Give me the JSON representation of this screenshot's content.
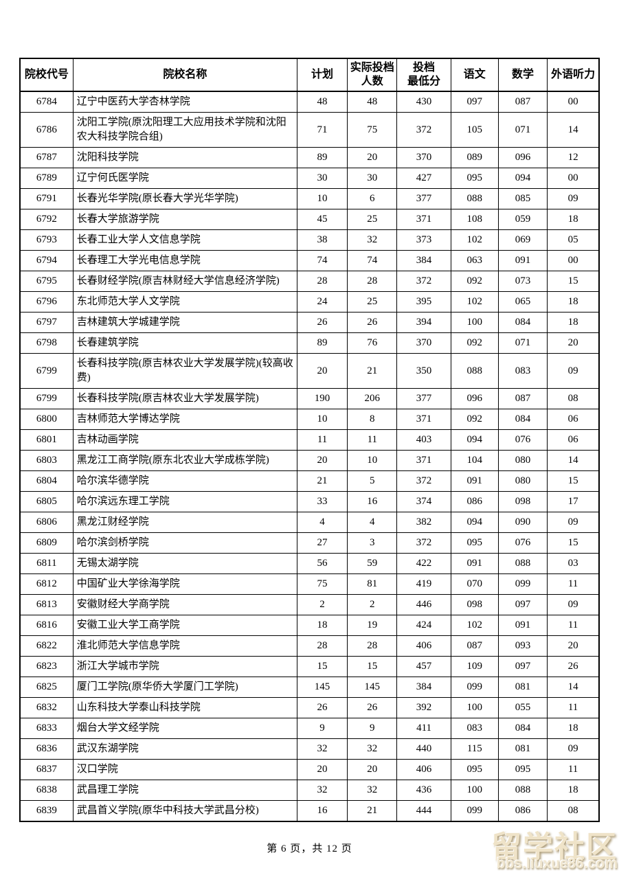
{
  "page": {
    "footer": "第 6 页，共 12 页"
  },
  "watermark": {
    "title": "留学社区",
    "url": "bbs.liuxue86.com"
  },
  "table": {
    "columns": [
      {
        "key": "college-code",
        "label": "院校代号"
      },
      {
        "key": "college-name",
        "label": "院校名称"
      },
      {
        "key": "plan",
        "label": "计划"
      },
      {
        "key": "actual-count",
        "label": "实际投档\n人数"
      },
      {
        "key": "min-score",
        "label": "投档\n最低分"
      },
      {
        "key": "chinese",
        "label": "语文"
      },
      {
        "key": "math",
        "label": "数学"
      },
      {
        "key": "foreign-listening",
        "label": "外语听力"
      }
    ],
    "rows": [
      [
        "6784",
        "辽宁中医药大学杏林学院",
        "48",
        "48",
        "430",
        "097",
        "087",
        "00"
      ],
      [
        "6786",
        "沈阳工学院(原沈阳理工大应用技术学院和沈阳农大科技学院合组)",
        "71",
        "75",
        "372",
        "105",
        "071",
        "14"
      ],
      [
        "6787",
        "沈阳科技学院",
        "89",
        "20",
        "370",
        "089",
        "096",
        "12"
      ],
      [
        "6789",
        "辽宁何氏医学院",
        "30",
        "30",
        "427",
        "095",
        "094",
        "00"
      ],
      [
        "6791",
        "长春光华学院(原长春大学光华学院)",
        "10",
        "6",
        "377",
        "088",
        "085",
        "09"
      ],
      [
        "6792",
        "长春大学旅游学院",
        "45",
        "25",
        "371",
        "108",
        "059",
        "18"
      ],
      [
        "6793",
        "长春工业大学人文信息学院",
        "38",
        "32",
        "373",
        "102",
        "069",
        "05"
      ],
      [
        "6794",
        "长春理工大学光电信息学院",
        "74",
        "74",
        "384",
        "063",
        "091",
        "00"
      ],
      [
        "6795",
        "长春财经学院(原吉林财经大学信息经济学院)",
        "28",
        "28",
        "372",
        "092",
        "073",
        "15"
      ],
      [
        "6796",
        "东北师范大学人文学院",
        "24",
        "25",
        "395",
        "102",
        "065",
        "18"
      ],
      [
        "6797",
        "吉林建筑大学城建学院",
        "26",
        "26",
        "394",
        "100",
        "084",
        "18"
      ],
      [
        "6798",
        "长春建筑学院",
        "89",
        "76",
        "370",
        "092",
        "071",
        "20"
      ],
      [
        "6799",
        "长春科技学院(原吉林农业大学发展学院)(较高收费)",
        "20",
        "21",
        "350",
        "088",
        "083",
        "09"
      ],
      [
        "6799",
        "长春科技学院(原吉林农业大学发展学院)",
        "190",
        "206",
        "377",
        "096",
        "087",
        "08"
      ],
      [
        "6800",
        "吉林师范大学博达学院",
        "10",
        "8",
        "371",
        "092",
        "084",
        "06"
      ],
      [
        "6801",
        "吉林动画学院",
        "11",
        "11",
        "403",
        "094",
        "076",
        "06"
      ],
      [
        "6803",
        "黑龙江工商学院(原东北农业大学成栋学院)",
        "20",
        "10",
        "371",
        "104",
        "080",
        "14"
      ],
      [
        "6804",
        "哈尔滨华德学院",
        "21",
        "5",
        "372",
        "091",
        "080",
        "15"
      ],
      [
        "6805",
        "哈尔滨远东理工学院",
        "33",
        "16",
        "374",
        "086",
        "098",
        "17"
      ],
      [
        "6806",
        "黑龙江财经学院",
        "4",
        "4",
        "382",
        "094",
        "090",
        "09"
      ],
      [
        "6809",
        "哈尔滨剑桥学院",
        "27",
        "3",
        "372",
        "095",
        "076",
        "15"
      ],
      [
        "6811",
        "无锡太湖学院",
        "56",
        "59",
        "422",
        "091",
        "088",
        "03"
      ],
      [
        "6812",
        "中国矿业大学徐海学院",
        "75",
        "81",
        "419",
        "070",
        "099",
        "11"
      ],
      [
        "6813",
        "安徽财经大学商学院",
        "2",
        "2",
        "446",
        "098",
        "097",
        "09"
      ],
      [
        "6816",
        "安徽工业大学工商学院",
        "18",
        "19",
        "424",
        "102",
        "091",
        "11"
      ],
      [
        "6822",
        "淮北师范大学信息学院",
        "28",
        "28",
        "406",
        "087",
        "093",
        "20"
      ],
      [
        "6823",
        "浙江大学城市学院",
        "15",
        "15",
        "457",
        "109",
        "097",
        "26"
      ],
      [
        "6825",
        "厦门工学院(原华侨大学厦门工学院)",
        "145",
        "145",
        "384",
        "099",
        "081",
        "14"
      ],
      [
        "6832",
        "山东科技大学泰山科技学院",
        "26",
        "26",
        "392",
        "100",
        "055",
        "11"
      ],
      [
        "6833",
        "烟台大学文经学院",
        "9",
        "9",
        "411",
        "083",
        "084",
        "18"
      ],
      [
        "6836",
        "武汉东湖学院",
        "32",
        "32",
        "440",
        "115",
        "081",
        "09"
      ],
      [
        "6837",
        "汉口学院",
        "20",
        "20",
        "406",
        "095",
        "095",
        "11"
      ],
      [
        "6838",
        "武昌理工学院",
        "32",
        "32",
        "436",
        "100",
        "088",
        "18"
      ],
      [
        "6839",
        "武昌首义学院(原华中科技大学武昌分校)",
        "16",
        "21",
        "444",
        "099",
        "086",
        "08"
      ]
    ]
  }
}
